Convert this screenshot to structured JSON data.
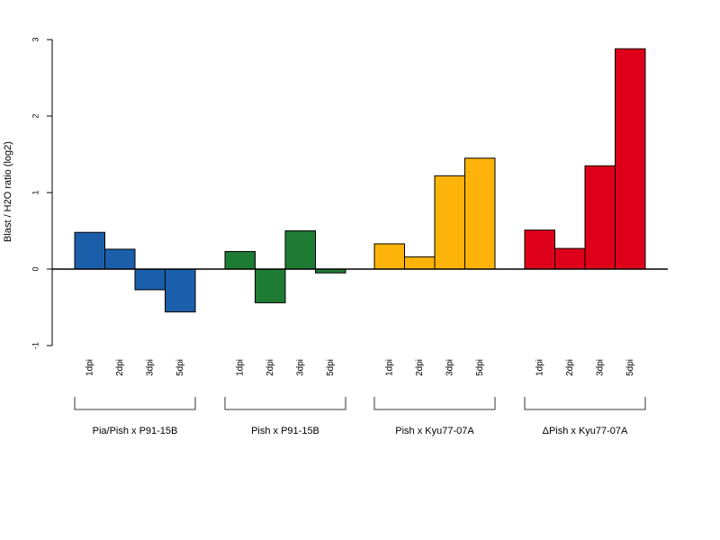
{
  "chart_data": {
    "type": "bar",
    "ylabel": "Blast / H2O ratio (log2)",
    "ylim": [
      -1,
      3
    ],
    "yticks": [
      "-1",
      "0",
      "1",
      "2",
      "3"
    ],
    "grid": false,
    "groups": [
      {
        "name": "Pia/Pish x P91-15B",
        "color": "#1b5fab",
        "categories": [
          "1dpi",
          "2dpi",
          "3dpi",
          "5dpi"
        ],
        "values": [
          0.48,
          0.26,
          -0.27,
          -0.56
        ]
      },
      {
        "name": "Pish x P91-15B",
        "color": "#1e7b34",
        "categories": [
          "1dpi",
          "2dpi",
          "3dpi",
          "5dpi"
        ],
        "values": [
          0.23,
          -0.44,
          0.5,
          -0.05
        ]
      },
      {
        "name": "Pish x Kyu77-07A",
        "color": "#fdb309",
        "categories": [
          "1dpi",
          "2dpi",
          "3dpi",
          "5dpi"
        ],
        "values": [
          0.33,
          0.16,
          1.22,
          1.45
        ]
      },
      {
        "name": "ΔPish x Kyu77-07A",
        "color": "#de001a",
        "categories": [
          "1dpi",
          "2dpi",
          "3dpi",
          "5dpi"
        ],
        "values": [
          0.51,
          0.27,
          1.35,
          2.88
        ]
      }
    ]
  }
}
